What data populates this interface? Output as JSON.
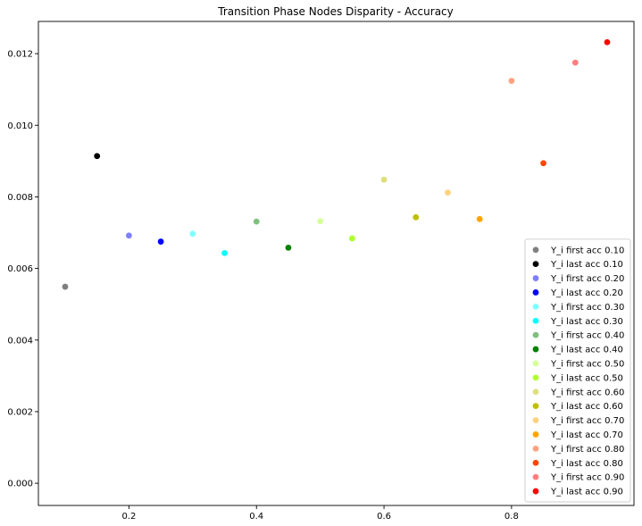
{
  "chart_data": {
    "type": "scatter",
    "title": "Transition Phase Nodes Disparity - Accuracy",
    "xlabel": "",
    "ylabel": "",
    "xlim": [
      0.058,
      0.992
    ],
    "ylim": [
      -0.00062,
      0.0129
    ],
    "xticks": [
      0.2,
      0.4,
      0.6,
      0.8
    ],
    "xtick_labels": [
      "0.2",
      "0.4",
      "0.6",
      "0.8"
    ],
    "yticks": [
      0.0,
      0.002,
      0.004,
      0.006,
      0.008,
      0.01,
      0.012
    ],
    "ytick_labels": [
      "0.000",
      "0.002",
      "0.004",
      "0.006",
      "0.008",
      "0.010",
      "0.012"
    ],
    "grid": false,
    "legend_position": "lower-right",
    "series": [
      {
        "name": "Y_i first acc 0.10",
        "color": "#7f7f7f",
        "x": [
          0.1
        ],
        "y": [
          0.00549
        ]
      },
      {
        "name": "Y_i last acc 0.10",
        "color": "#000000",
        "x": [
          0.15
        ],
        "y": [
          0.00914
        ]
      },
      {
        "name": "Y_i first acc 0.20",
        "color": "#7f7fff",
        "x": [
          0.2
        ],
        "y": [
          0.00692
        ]
      },
      {
        "name": "Y_i last acc 0.20",
        "color": "#0000ff",
        "x": [
          0.25
        ],
        "y": [
          0.00675
        ]
      },
      {
        "name": "Y_i first acc 0.30",
        "color": "#7fffff",
        "x": [
          0.3
        ],
        "y": [
          0.00697
        ]
      },
      {
        "name": "Y_i last acc 0.30",
        "color": "#00ffff",
        "x": [
          0.35
        ],
        "y": [
          0.00643
        ]
      },
      {
        "name": "Y_i first acc 0.40",
        "color": "#7fbf7f",
        "x": [
          0.4
        ],
        "y": [
          0.00731
        ]
      },
      {
        "name": "Y_i last acc 0.40",
        "color": "#008000",
        "x": [
          0.45
        ],
        "y": [
          0.00658
        ]
      },
      {
        "name": "Y_i first acc 0.50",
        "color": "#d6ff99",
        "x": [
          0.5
        ],
        "y": [
          0.00732
        ]
      },
      {
        "name": "Y_i last acc 0.50",
        "color": "#adff2f",
        "x": [
          0.55
        ],
        "y": [
          0.00684
        ]
      },
      {
        "name": "Y_i first acc 0.60",
        "color": "#dfdf7f",
        "x": [
          0.6
        ],
        "y": [
          0.00848
        ]
      },
      {
        "name": "Y_i last acc 0.60",
        "color": "#bfbf00",
        "x": [
          0.65
        ],
        "y": [
          0.00743
        ]
      },
      {
        "name": "Y_i first acc 0.70",
        "color": "#ffd27f",
        "x": [
          0.7
        ],
        "y": [
          0.00812
        ]
      },
      {
        "name": "Y_i last acc 0.70",
        "color": "#ffa500",
        "x": [
          0.75
        ],
        "y": [
          0.00738
        ]
      },
      {
        "name": "Y_i first acc 0.80",
        "color": "#ffa27f",
        "x": [
          0.8
        ],
        "y": [
          0.01124
        ]
      },
      {
        "name": "Y_i last acc 0.80",
        "color": "#ff4500",
        "x": [
          0.85
        ],
        "y": [
          0.00894
        ]
      },
      {
        "name": "Y_i first acc 0.90",
        "color": "#ff7f7f",
        "x": [
          0.9
        ],
        "y": [
          0.01175
        ]
      },
      {
        "name": "Y_i last acc 0.90",
        "color": "#ff0000",
        "x": [
          0.95
        ],
        "y": [
          0.01232
        ]
      }
    ]
  }
}
